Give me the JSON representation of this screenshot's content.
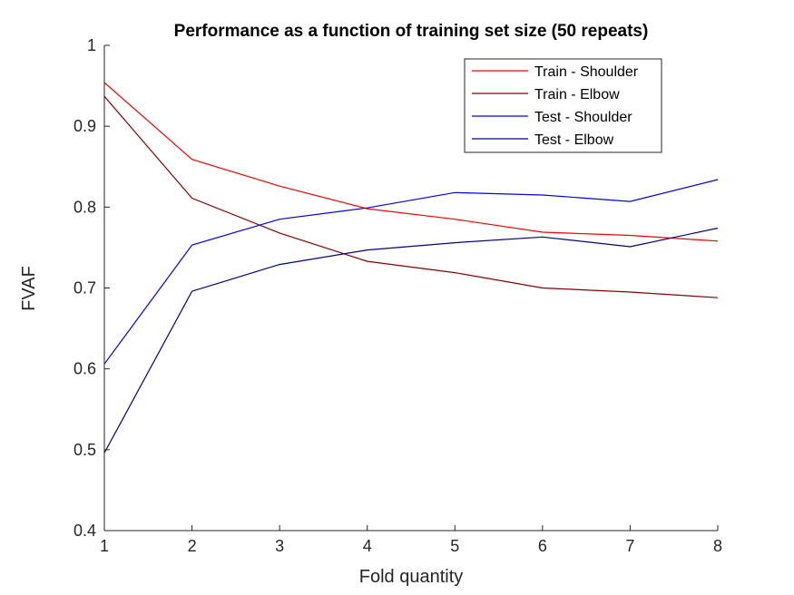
{
  "chart_data": {
    "type": "line",
    "title": "Performance as a function of training set size (50 repeats)",
    "xlabel": "Fold quantity",
    "ylabel": "FVAF",
    "x": [
      1,
      2,
      3,
      4,
      5,
      6,
      7,
      8
    ],
    "xlim": [
      1,
      8
    ],
    "ylim": [
      0.4,
      1.0
    ],
    "xticks": [
      "1",
      "2",
      "3",
      "4",
      "5",
      "6",
      "7",
      "8"
    ],
    "yticks": [
      "0.4",
      "0.5",
      "0.6",
      "0.7",
      "0.8",
      "0.9",
      "1"
    ],
    "grid": false,
    "legend_position": "top-right",
    "series": [
      {
        "name": "Train - Shoulder",
        "color": "#ff0000",
        "values": [
          0.954,
          0.859,
          0.826,
          0.798,
          0.785,
          0.769,
          0.765,
          0.758
        ]
      },
      {
        "name": "Train - Elbow",
        "color": "#8b0000",
        "values": [
          0.937,
          0.811,
          0.768,
          0.733,
          0.719,
          0.7,
          0.695,
          0.688
        ]
      },
      {
        "name": "Test - Shoulder",
        "color": "#0000ff",
        "values": [
          0.606,
          0.753,
          0.785,
          0.799,
          0.818,
          0.815,
          0.807,
          0.834
        ]
      },
      {
        "name": "Test - Elbow",
        "color": "#00008b",
        "values": [
          0.496,
          0.696,
          0.729,
          0.747,
          0.756,
          0.763,
          0.751,
          0.774
        ]
      }
    ]
  }
}
